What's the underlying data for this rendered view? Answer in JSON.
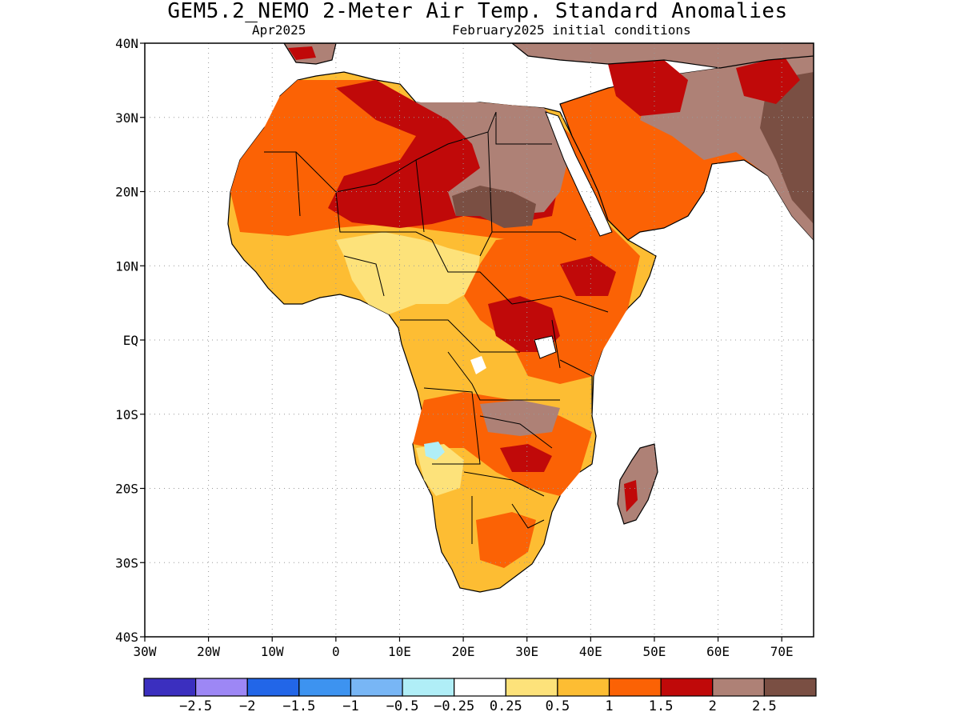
{
  "header": {
    "title": "GEM5.2_NEMO 2-Meter Air Temp. Standard Anomalies",
    "subtitle_left": "Apr2025",
    "subtitle_right": "February2025 initial conditions"
  },
  "map": {
    "region": "Africa",
    "lon_range": [
      -30,
      75
    ],
    "lat_range": [
      -40,
      40
    ],
    "lat_ticks": [
      {
        "value": 40,
        "label": "40N"
      },
      {
        "value": 30,
        "label": "30N"
      },
      {
        "value": 20,
        "label": "20N"
      },
      {
        "value": 10,
        "label": "10N"
      },
      {
        "value": 0,
        "label": "EQ"
      },
      {
        "value": -10,
        "label": "10S"
      },
      {
        "value": -20,
        "label": "20S"
      },
      {
        "value": -30,
        "label": "30S"
      },
      {
        "value": -40,
        "label": "40S"
      }
    ],
    "lon_ticks": [
      {
        "value": -30,
        "label": "30W"
      },
      {
        "value": -20,
        "label": "20W"
      },
      {
        "value": -10,
        "label": "10W"
      },
      {
        "value": 0,
        "label": "0"
      },
      {
        "value": 10,
        "label": "10E"
      },
      {
        "value": 20,
        "label": "20E"
      },
      {
        "value": 30,
        "label": "30E"
      },
      {
        "value": 40,
        "label": "40E"
      },
      {
        "value": 50,
        "label": "50E"
      },
      {
        "value": 60,
        "label": "60E"
      },
      {
        "value": 70,
        "label": "70E"
      }
    ],
    "grid": true
  },
  "colorbar": {
    "colors": [
      "#3b2fbf",
      "#9d87f5",
      "#2266e8",
      "#3d93f0",
      "#78b6f5",
      "#b0eef7",
      "#ffffff",
      "#fde27a",
      "#fdbd33",
      "#fb6205",
      "#c00909",
      "#ae8176",
      "#7a4f43"
    ],
    "labels": [
      "-2.5",
      "-2",
      "-1.5",
      "-1",
      "-0.5",
      "-0.25",
      "0.25",
      "0.5",
      "1",
      "1.5",
      "2",
      "2.5"
    ]
  }
}
